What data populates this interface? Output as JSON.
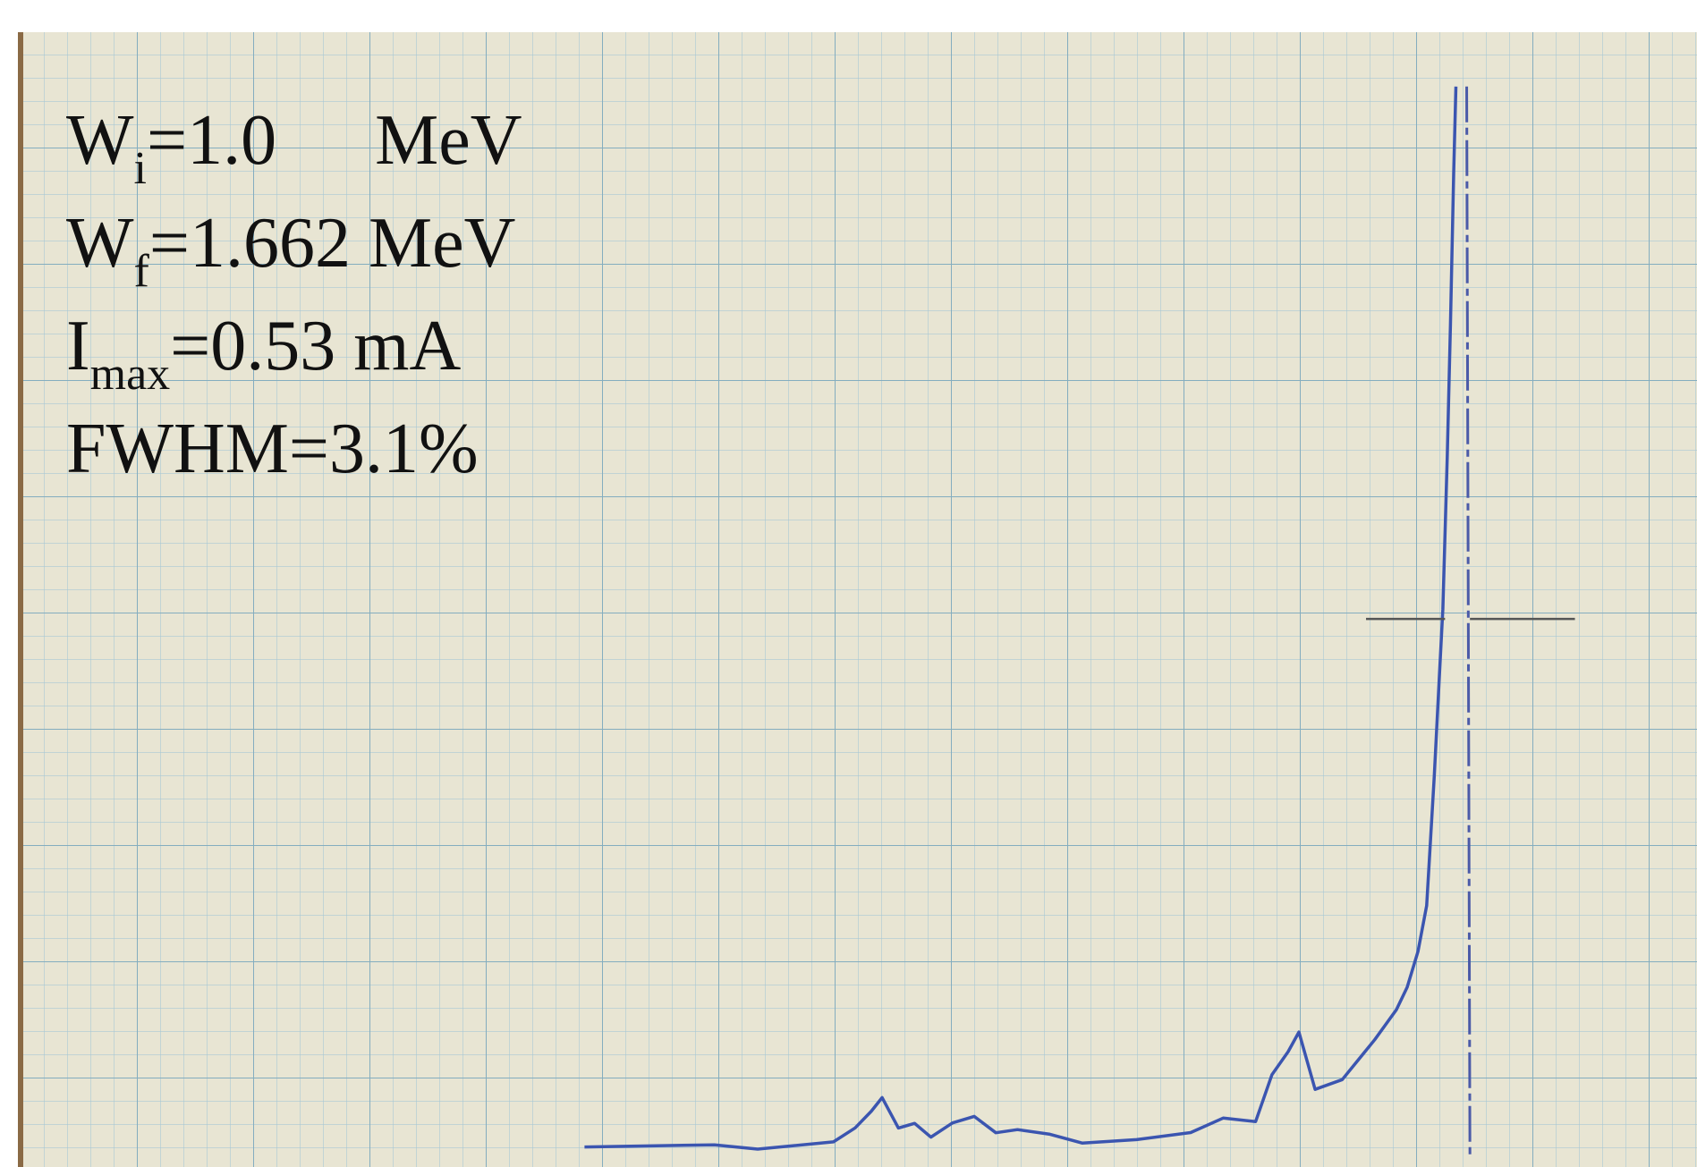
{
  "annotations": [
    {
      "base": "W",
      "sub": "i",
      "text": "=1.0",
      "unit": "MeV"
    },
    {
      "base": "W",
      "sub": "f",
      "text": "=1.662 MeV"
    },
    {
      "base": "I",
      "sub": "max",
      "text": "=0.53 mA"
    },
    {
      "base": "FWHM=3.1%"
    }
  ]
}
